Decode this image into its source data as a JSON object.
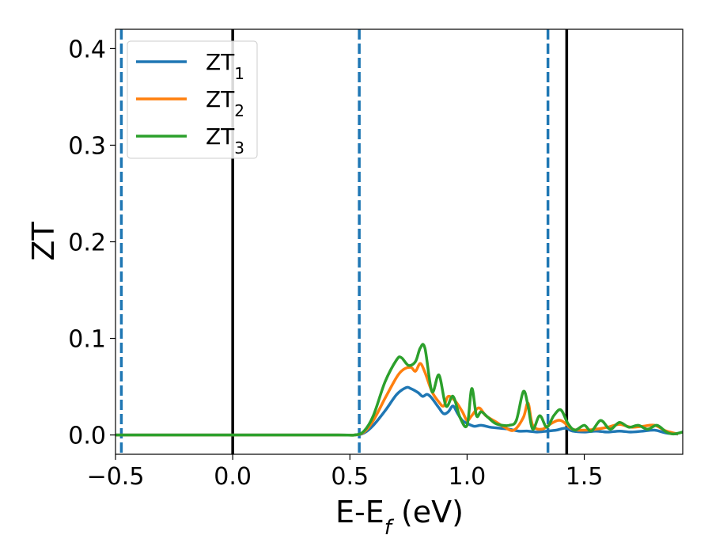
{
  "chart_data": {
    "type": "line",
    "title": "",
    "xlabel": "E-E",
    "xlabel_sub": "f",
    "xlabel_suffix": " (eV)",
    "ylabel": "ZT",
    "xlim": [
      -0.5,
      1.92
    ],
    "ylim": [
      -0.02,
      0.42
    ],
    "xticks": [
      -0.5,
      0.0,
      0.5,
      1.0,
      1.5
    ],
    "xtick_labels": [
      "−0.5",
      "0.0",
      "0.5",
      "1.0",
      "1.5"
    ],
    "yticks": [
      0.0,
      0.1,
      0.2,
      0.3,
      0.4
    ],
    "ytick_labels": [
      "0.0",
      "0.1",
      "0.2",
      "0.3",
      "0.4"
    ],
    "grid": false,
    "legend_position": "top-left",
    "vlines": [
      {
        "x": -0.475,
        "style": "dashed",
        "color": "#1f77b4"
      },
      {
        "x": 0.0,
        "style": "solid",
        "color": "#000000"
      },
      {
        "x": 0.54,
        "style": "dashed",
        "color": "#1f77b4"
      },
      {
        "x": 1.345,
        "style": "dashed",
        "color": "#1f77b4"
      },
      {
        "x": 1.425,
        "style": "solid",
        "color": "#000000"
      }
    ],
    "series": [
      {
        "name": "ZT",
        "subscript": "1",
        "color": "#1f77b4",
        "x": [
          -0.5,
          0.0,
          0.45,
          0.52,
          0.56,
          0.6,
          0.65,
          0.7,
          0.74,
          0.76,
          0.79,
          0.81,
          0.83,
          0.85,
          0.88,
          0.9,
          0.92,
          0.94,
          0.96,
          0.98,
          1.0,
          1.03,
          1.06,
          1.1,
          1.14,
          1.18,
          1.22,
          1.26,
          1.3,
          1.34,
          1.38,
          1.42,
          1.45,
          1.5,
          1.55,
          1.6,
          1.65,
          1.7,
          1.75,
          1.8,
          1.85,
          1.9
        ],
        "y": [
          0.0,
          0.0,
          0.0,
          0.0,
          0.002,
          0.01,
          0.025,
          0.042,
          0.049,
          0.048,
          0.044,
          0.04,
          0.042,
          0.038,
          0.028,
          0.022,
          0.024,
          0.03,
          0.022,
          0.015,
          0.012,
          0.009,
          0.01,
          0.008,
          0.007,
          0.006,
          0.004,
          0.004,
          0.003,
          0.004,
          0.005,
          0.007,
          0.004,
          0.003,
          0.004,
          0.003,
          0.004,
          0.003,
          0.004,
          0.005,
          0.002,
          0.001
        ]
      },
      {
        "name": "ZT",
        "subscript": "2",
        "color": "#ff7f0e",
        "x": [
          -0.5,
          0.0,
          0.45,
          0.52,
          0.56,
          0.6,
          0.65,
          0.7,
          0.73,
          0.76,
          0.78,
          0.8,
          0.82,
          0.85,
          0.88,
          0.9,
          0.92,
          0.95,
          0.98,
          1.0,
          1.02,
          1.05,
          1.08,
          1.12,
          1.16,
          1.2,
          1.24,
          1.26,
          1.28,
          1.32,
          1.36,
          1.4,
          1.45,
          1.5,
          1.55,
          1.6,
          1.65,
          1.7,
          1.75,
          1.8,
          1.85,
          1.9
        ],
        "y": [
          0.0,
          0.0,
          0.0,
          0.0,
          0.003,
          0.015,
          0.038,
          0.06,
          0.068,
          0.07,
          0.066,
          0.074,
          0.065,
          0.045,
          0.034,
          0.03,
          0.04,
          0.035,
          0.024,
          0.015,
          0.02,
          0.028,
          0.02,
          0.014,
          0.008,
          0.005,
          0.018,
          0.033,
          0.01,
          0.006,
          0.012,
          0.015,
          0.006,
          0.005,
          0.006,
          0.008,
          0.011,
          0.008,
          0.009,
          0.01,
          0.004,
          0.001
        ]
      },
      {
        "name": "ZT",
        "subscript": "3",
        "color": "#2ca02c",
        "x": [
          -0.5,
          0.0,
          0.45,
          0.52,
          0.56,
          0.6,
          0.65,
          0.7,
          0.72,
          0.75,
          0.78,
          0.8,
          0.82,
          0.85,
          0.88,
          0.91,
          0.94,
          0.97,
          1.0,
          1.02,
          1.04,
          1.06,
          1.09,
          1.12,
          1.15,
          1.18,
          1.21,
          1.24,
          1.26,
          1.28,
          1.31,
          1.34,
          1.37,
          1.4,
          1.43,
          1.46,
          1.5,
          1.53,
          1.57,
          1.61,
          1.65,
          1.69,
          1.73,
          1.77,
          1.81,
          1.85,
          1.88,
          1.92
        ],
        "y": [
          0.0,
          0.0,
          0.0,
          0.0,
          0.004,
          0.02,
          0.055,
          0.078,
          0.08,
          0.072,
          0.076,
          0.09,
          0.09,
          0.045,
          0.062,
          0.03,
          0.04,
          0.018,
          0.01,
          0.048,
          0.02,
          0.024,
          0.018,
          0.012,
          0.01,
          0.01,
          0.015,
          0.045,
          0.03,
          0.006,
          0.02,
          0.008,
          0.02,
          0.026,
          0.012,
          0.005,
          0.01,
          0.004,
          0.015,
          0.006,
          0.013,
          0.008,
          0.01,
          0.006,
          0.01,
          0.003,
          0.001,
          0.003
        ]
      }
    ]
  }
}
